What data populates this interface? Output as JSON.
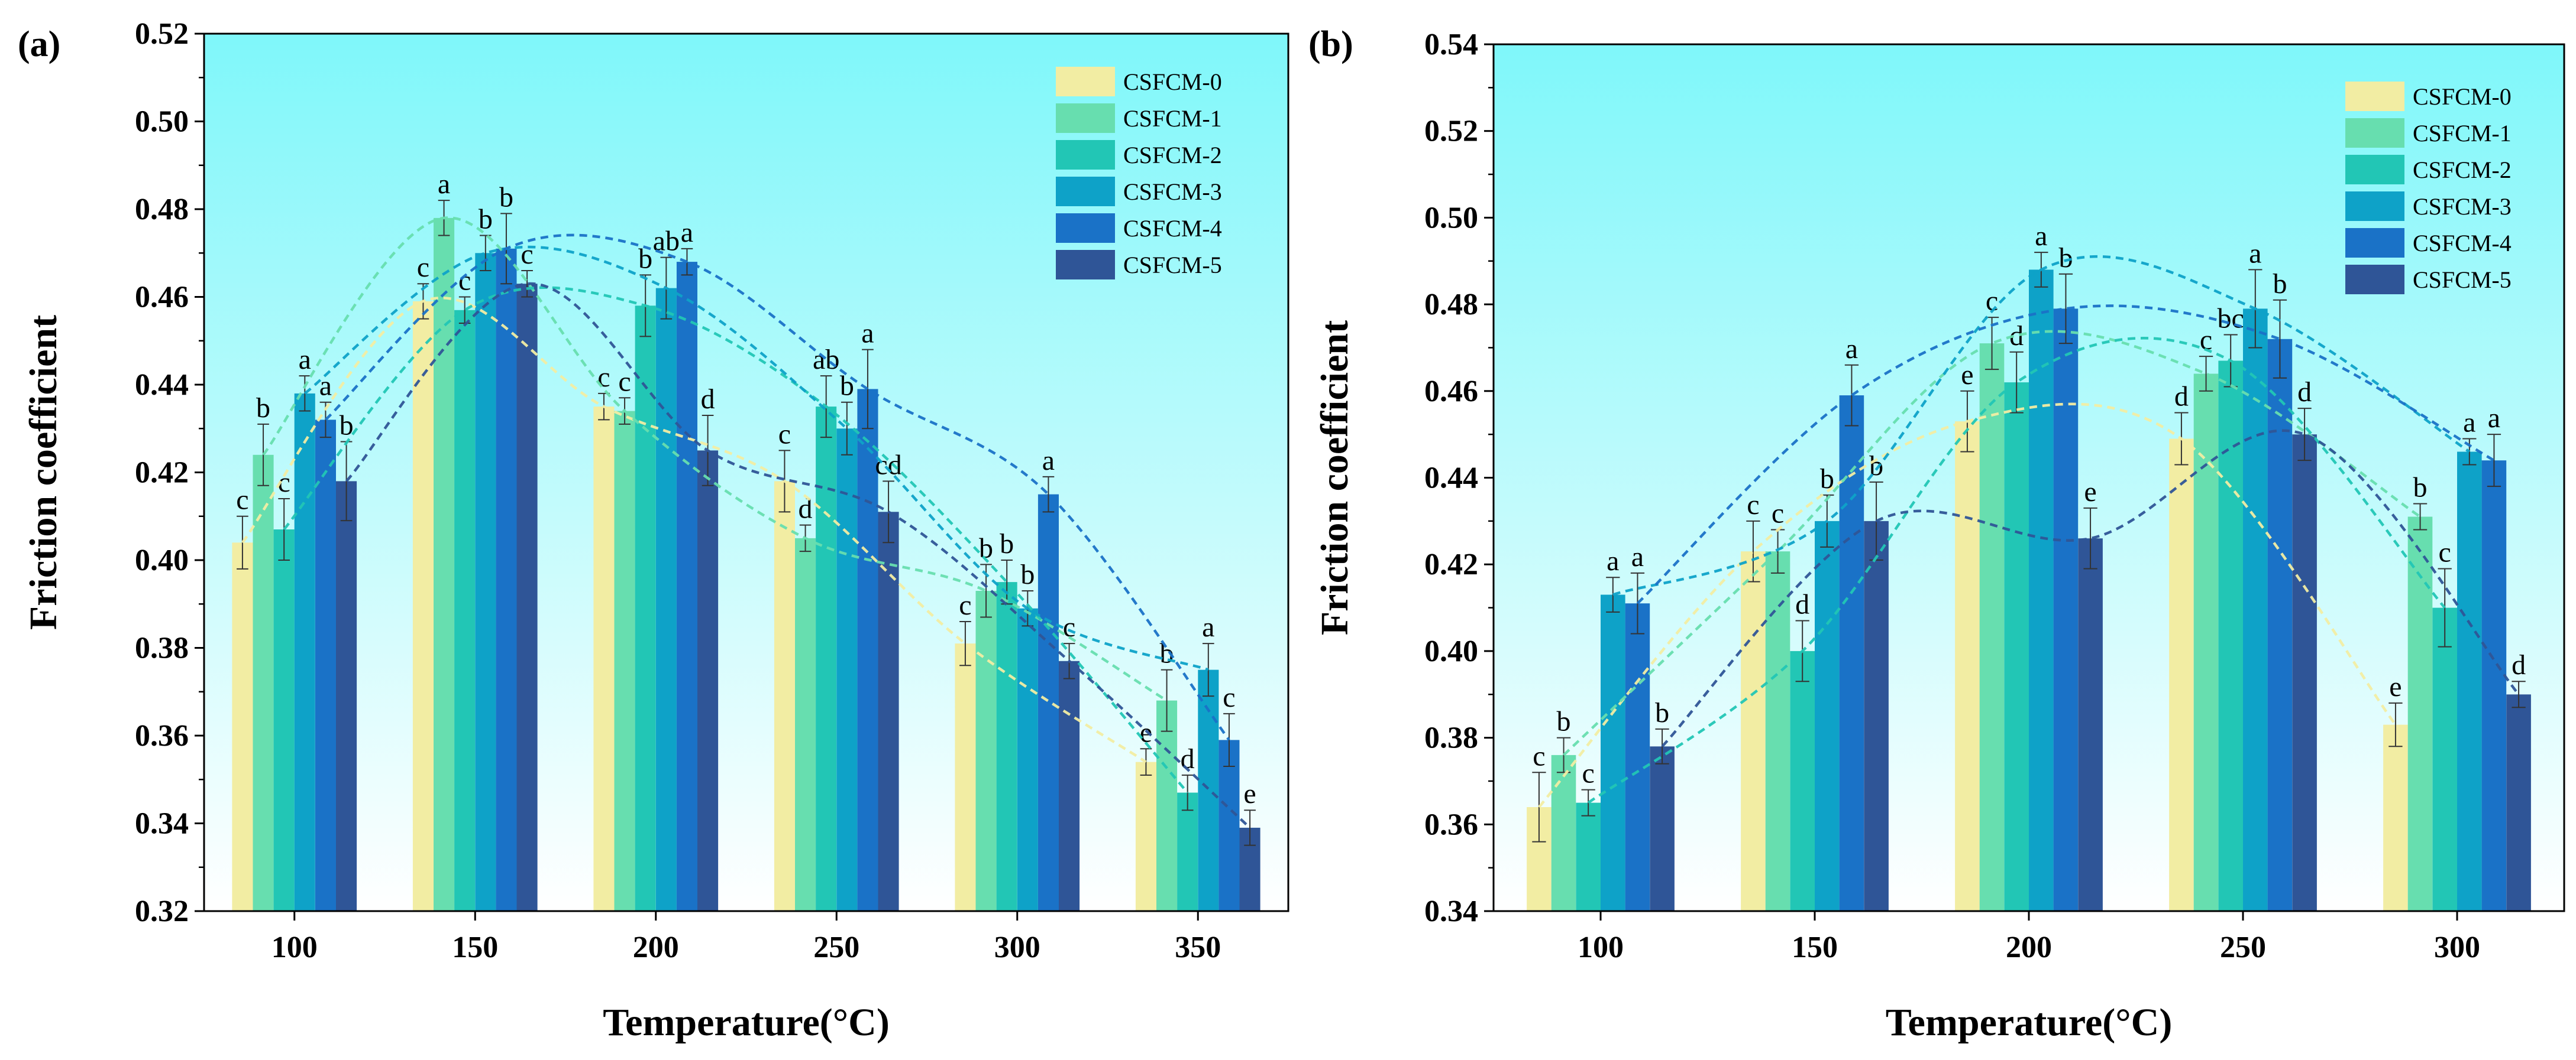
{
  "chart_data": [
    {
      "type": "bar",
      "panel_label": "(a)",
      "xlabel": "Temperature(°C)",
      "ylabel": "Friction coefficient",
      "categories": [
        "100",
        "150",
        "200",
        "250",
        "300",
        "350"
      ],
      "ylim": [
        0.32,
        0.52
      ],
      "yticks": [
        "0.32",
        "0.34",
        "0.36",
        "0.38",
        "0.40",
        "0.42",
        "0.44",
        "0.46",
        "0.48",
        "0.50",
        "0.52"
      ],
      "grid": false,
      "legend_position": "top-right",
      "series": [
        {
          "name": "CSFCM-0",
          "color": "#F2EDA3",
          "values": [
            0.404,
            0.459,
            0.435,
            0.418,
            0.381,
            0.354
          ],
          "errors": [
            0.006,
            0.004,
            0.003,
            0.007,
            0.005,
            0.003
          ],
          "letters": [
            "c",
            "c",
            "c",
            "c",
            "c",
            "e"
          ]
        },
        {
          "name": "CSFCM-1",
          "color": "#67DEAF",
          "values": [
            0.424,
            0.478,
            0.434,
            0.405,
            0.393,
            0.368
          ],
          "errors": [
            0.007,
            0.004,
            0.003,
            0.003,
            0.006,
            0.007
          ],
          "letters": [
            "b",
            "a",
            "c",
            "d",
            "b",
            "b"
          ]
        },
        {
          "name": "CSFCM-2",
          "color": "#22C6B5",
          "values": [
            0.407,
            0.457,
            0.458,
            0.435,
            0.395,
            0.347
          ],
          "errors": [
            0.007,
            0.003,
            0.007,
            0.007,
            0.005,
            0.004
          ],
          "letters": [
            "c",
            "c",
            "b",
            "ab",
            "b",
            "d"
          ]
        },
        {
          "name": "CSFCM-3",
          "color": "#0EA2C8",
          "values": [
            0.438,
            0.47,
            0.462,
            0.43,
            0.389,
            0.375
          ],
          "errors": [
            0.004,
            0.004,
            0.007,
            0.006,
            0.004,
            0.006
          ],
          "letters": [
            "a",
            "b",
            "ab",
            "b",
            "b",
            "a"
          ]
        },
        {
          "name": "CSFCM-4",
          "color": "#1A72C7",
          "values": [
            0.432,
            0.471,
            0.468,
            0.439,
            0.415,
            0.359
          ],
          "errors": [
            0.004,
            0.008,
            0.003,
            0.009,
            0.004,
            0.006
          ],
          "letters": [
            "a",
            "b",
            "a",
            "a",
            "a",
            "c"
          ]
        },
        {
          "name": "CSFCM-5",
          "color": "#2F5597",
          "values": [
            0.418,
            0.463,
            0.425,
            0.411,
            0.377,
            0.339
          ],
          "errors": [
            0.009,
            0.003,
            0.008,
            0.007,
            0.004,
            0.004
          ],
          "letters": [
            "b",
            "c",
            "d",
            "cd",
            "c",
            "e"
          ]
        }
      ]
    },
    {
      "type": "bar",
      "panel_label": "(b)",
      "xlabel": "Temperature(°C)",
      "ylabel": "Friction coefficient",
      "categories": [
        "100",
        "150",
        "200",
        "250",
        "300"
      ],
      "ylim": [
        0.34,
        0.54
      ],
      "yticks": [
        "0.34",
        "0.36",
        "0.38",
        "0.40",
        "0.42",
        "0.44",
        "0.46",
        "0.48",
        "0.50",
        "0.52",
        "0.54"
      ],
      "grid": false,
      "legend_position": "top-right",
      "series": [
        {
          "name": "CSFCM-0",
          "color": "#F2EDA3",
          "values": [
            0.364,
            0.423,
            0.453,
            0.449,
            0.383
          ],
          "errors": [
            0.008,
            0.007,
            0.007,
            0.006,
            0.005
          ],
          "letters": [
            "c",
            "c",
            "e",
            "d",
            "e"
          ]
        },
        {
          "name": "CSFCM-1",
          "color": "#67DEAF",
          "values": [
            0.376,
            0.423,
            0.471,
            0.464,
            0.431
          ],
          "errors": [
            0.004,
            0.005,
            0.006,
            0.004,
            0.003
          ],
          "letters": [
            "b",
            "c",
            "c",
            "c",
            "b"
          ]
        },
        {
          "name": "CSFCM-2",
          "color": "#22C6B5",
          "values": [
            0.365,
            0.4,
            0.462,
            0.467,
            0.41
          ],
          "errors": [
            0.003,
            0.007,
            0.007,
            0.006,
            0.009
          ],
          "letters": [
            "c",
            "d",
            "d",
            "bc",
            "c"
          ]
        },
        {
          "name": "CSFCM-3",
          "color": "#0EA2C8",
          "values": [
            0.413,
            0.43,
            0.488,
            0.479,
            0.446
          ],
          "errors": [
            0.004,
            0.006,
            0.004,
            0.009,
            0.003
          ],
          "letters": [
            "a",
            "b",
            "a",
            "a",
            "a"
          ]
        },
        {
          "name": "CSFCM-4",
          "color": "#1A72C7",
          "values": [
            0.411,
            0.459,
            0.479,
            0.472,
            0.444
          ],
          "errors": [
            0.007,
            0.007,
            0.008,
            0.009,
            0.006
          ],
          "letters": [
            "a",
            "a",
            "b",
            "b",
            "a"
          ]
        },
        {
          "name": "CSFCM-5",
          "color": "#2F5597",
          "values": [
            0.378,
            0.43,
            0.426,
            0.45,
            0.39
          ],
          "errors": [
            0.004,
            0.009,
            0.007,
            0.006,
            0.003
          ],
          "letters": [
            "b",
            "b",
            "e",
            "d",
            "d"
          ]
        }
      ]
    }
  ]
}
